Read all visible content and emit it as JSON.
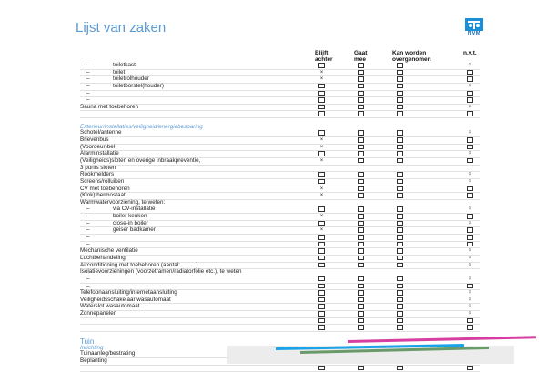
{
  "title": "Lijst van zaken",
  "logo_text": "NVM",
  "columns": [
    "Blijft achter",
    "Gaat mee",
    "Kan worden overgenomen",
    "n.v.t."
  ],
  "colors": {
    "accent": "#5b9bd5",
    "logo": "#1a8fd8",
    "stripe_blue": "#1aa3e8",
    "stripe_magenta": "#d63fa0",
    "stripe_green": "#6a9a6a"
  },
  "rows": [
    {
      "type": "sub",
      "label": "toiletkast",
      "marks": [
        "",
        "",
        "",
        "x"
      ]
    },
    {
      "type": "sub",
      "label": "toilet",
      "marks": [
        "x",
        "",
        "",
        ""
      ]
    },
    {
      "type": "sub",
      "label": "toiletrolhouder",
      "marks": [
        "x",
        "",
        "",
        ""
      ]
    },
    {
      "type": "sub",
      "label": "toiletborstel(houder)",
      "marks": [
        "",
        "",
        "",
        "x"
      ]
    },
    {
      "type": "sub",
      "label": "",
      "marks": [
        "",
        "",
        "",
        ""
      ]
    },
    {
      "type": "sub",
      "label": "",
      "marks": [
        "",
        "",
        "",
        ""
      ]
    },
    {
      "type": "item",
      "label": "Sauna met toebehoren",
      "marks": [
        "",
        "",
        "",
        "x"
      ]
    },
    {
      "type": "item",
      "label": "",
      "marks": [
        "",
        "",
        "",
        ""
      ]
    },
    {
      "type": "gap"
    },
    {
      "type": "sec",
      "label": "Exterieur/installaties/veiligheid/energiebesparing"
    },
    {
      "type": "item",
      "label": "Schotel/antenne",
      "marks": [
        "",
        "",
        "",
        "x"
      ]
    },
    {
      "type": "item",
      "label": "Brievenbus",
      "marks": [
        "x",
        "",
        "",
        ""
      ]
    },
    {
      "type": "item",
      "label": "(Voordeur)bel",
      "marks": [
        "x",
        "",
        "",
        ""
      ]
    },
    {
      "type": "item",
      "label": "Alarminstallatie",
      "marks": [
        "",
        "",
        "",
        "x"
      ]
    },
    {
      "type": "item",
      "label": "(Veiligheids)sloten en overige inbraakpreventie,",
      "marks": [
        "x",
        "",
        "",
        ""
      ]
    },
    {
      "type": "item",
      "label": "3 punts sloten"
    },
    {
      "type": "item",
      "label": "Rookmelders",
      "marks": [
        "",
        "",
        "",
        "x"
      ]
    },
    {
      "type": "item",
      "label": "Screens/rolluiken",
      "marks": [
        "",
        "",
        "",
        "x"
      ]
    },
    {
      "type": "item",
      "label": "CV met toebehoren",
      "marks": [
        "x",
        "",
        "",
        ""
      ]
    },
    {
      "type": "item",
      "label": "(Klok)thermostaat",
      "marks": [
        "x",
        "",
        "",
        ""
      ]
    },
    {
      "type": "item",
      "label": "Warmwatervoorziening, te weten:"
    },
    {
      "type": "sub",
      "label": "via CV-installatie",
      "marks": [
        "",
        "",
        "",
        "x"
      ]
    },
    {
      "type": "sub",
      "label": "boiler keuken",
      "marks": [
        "x",
        "",
        "",
        ""
      ]
    },
    {
      "type": "sub",
      "label": "close-in boiler",
      "marks": [
        "",
        "",
        "",
        "x"
      ]
    },
    {
      "type": "sub",
      "label": "geiser badkamer",
      "marks": [
        "x",
        "",
        "",
        ""
      ]
    },
    {
      "type": "sub",
      "label": "",
      "marks": [
        "",
        "",
        "",
        ""
      ]
    },
    {
      "type": "sub",
      "label": "",
      "marks": [
        "",
        "",
        "",
        ""
      ]
    },
    {
      "type": "item",
      "label": "Mechanische ventilatie",
      "marks": [
        "",
        "",
        "",
        "x"
      ]
    },
    {
      "type": "item",
      "label": "Luchtbehandeling",
      "marks": [
        "",
        "",
        "",
        "x"
      ]
    },
    {
      "type": "item",
      "label": "Airconditioning met toebehoren (aantal:..........)",
      "marks": [
        "",
        "",
        "",
        "x"
      ]
    },
    {
      "type": "item",
      "label": "Isolatievoorzieningen (voorzetramen/radiatorfolie etc.), te weten"
    },
    {
      "type": "sub",
      "label": "",
      "marks": [
        "",
        "",
        "",
        "x"
      ]
    },
    {
      "type": "sub",
      "label": "",
      "marks": [
        "",
        "",
        "",
        ""
      ]
    },
    {
      "type": "item",
      "label": "Telefoonaansluiting/internetaansluiting",
      "marks": [
        "",
        "",
        "",
        "x"
      ]
    },
    {
      "type": "item",
      "label": "Veiligheidsschakelaar wasautomaat",
      "marks": [
        "",
        "",
        "",
        "x"
      ]
    },
    {
      "type": "item",
      "label": "Waterslot wasautomaat",
      "marks": [
        "",
        "",
        "",
        "x"
      ]
    },
    {
      "type": "item",
      "label": "Zonnepanelen",
      "marks": [
        "",
        "",
        "",
        "x"
      ]
    },
    {
      "type": "item",
      "label": "",
      "marks": [
        "",
        "",
        "",
        ""
      ]
    },
    {
      "type": "item",
      "label": "",
      "marks": [
        "",
        "",
        "",
        ""
      ]
    },
    {
      "type": "gap"
    },
    {
      "type": "big",
      "label": "Tuin"
    },
    {
      "type": "sec",
      "label": "Inrichting"
    },
    {
      "type": "item",
      "label": "Tuinaanleg/bestrating",
      "marks": [
        "x",
        "",
        "",
        ""
      ]
    },
    {
      "type": "item",
      "label": "Beplanting",
      "marks": [
        "x",
        "",
        "",
        ""
      ]
    },
    {
      "type": "item",
      "label": "",
      "marks": [
        "",
        "",
        "",
        ""
      ]
    }
  ]
}
